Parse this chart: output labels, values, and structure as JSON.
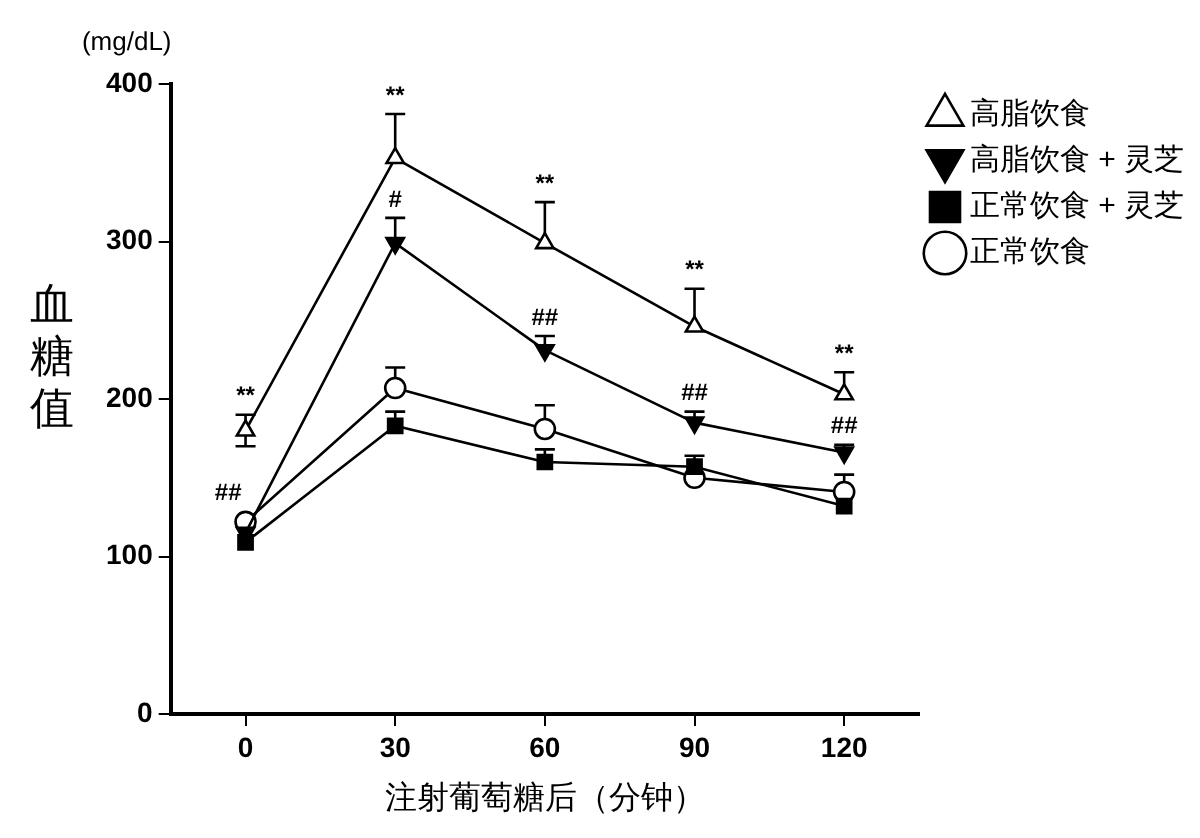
{
  "chart_data": {
    "type": "line",
    "xlabel": "注射葡萄糖后（分钟）",
    "ylabel": "血糖值",
    "categories": [
      "0",
      "30",
      "60",
      "90",
      "120"
    ],
    "ylim": [
      0,
      400
    ],
    "yticks": [
      0,
      100,
      200,
      300,
      400
    ],
    "grid": false,
    "legend": "top right",
    "line_style": "solid",
    "series": [
      {
        "name": "高脂饮食",
        "color": "#000000",
        "marker": "triangle",
        "values": [
          180,
          353,
          299,
          246,
          203
        ],
        "errors": [
          [
            170,
            190
          ],
          [
            353,
            381
          ],
          [
            299,
            325
          ],
          [
            246,
            270
          ],
          [
            203,
            217
          ]
        ]
      },
      {
        "name": "高脂饮食 + 灵芝",
        "color": "#000000",
        "marker": "triangle_down",
        "values": [
          115,
          299,
          231,
          185,
          166
        ],
        "errors": [
          null,
          [
            299,
            315
          ],
          [
            231,
            240
          ],
          [
            185,
            192
          ],
          [
            166,
            171
          ]
        ]
      },
      {
        "name": "正常饮食 + 灵芝",
        "color": "#000000",
        "marker": "square",
        "values": [
          109,
          183,
          160,
          157,
          132
        ],
        "errors": [
          null,
          [
            183,
            192
          ],
          [
            160,
            168
          ],
          [
            157,
            164
          ],
          null
        ]
      },
      {
        "name": "正常饮食",
        "color": "#000000",
        "marker": "circle",
        "values": [
          122,
          207,
          181,
          150,
          141
        ],
        "errors": [
          null,
          [
            207,
            220
          ],
          [
            181,
            196
          ],
          null,
          [
            141,
            152
          ]
        ]
      }
    ],
    "annotations": [
      "(mg/dL)",
      {
        "text": "**",
        "x": "0",
        "y": 180
      },
      {
        "text": "##",
        "x": "0",
        "y": 115
      },
      {
        "text": "**",
        "x": "30",
        "y": 353
      },
      {
        "text": "#",
        "x": "30",
        "y": 299
      },
      {
        "text": "**",
        "x": "60",
        "y": 299
      },
      {
        "text": "##",
        "x": "60",
        "y": 231
      },
      {
        "text": "**",
        "x": "90",
        "y": 246
      },
      {
        "text": "##",
        "x": "90",
        "y": 185
      },
      {
        "text": "**",
        "x": "120",
        "y": 203
      },
      {
        "text": "##",
        "x": "120",
        "y": 166
      }
    ]
  }
}
